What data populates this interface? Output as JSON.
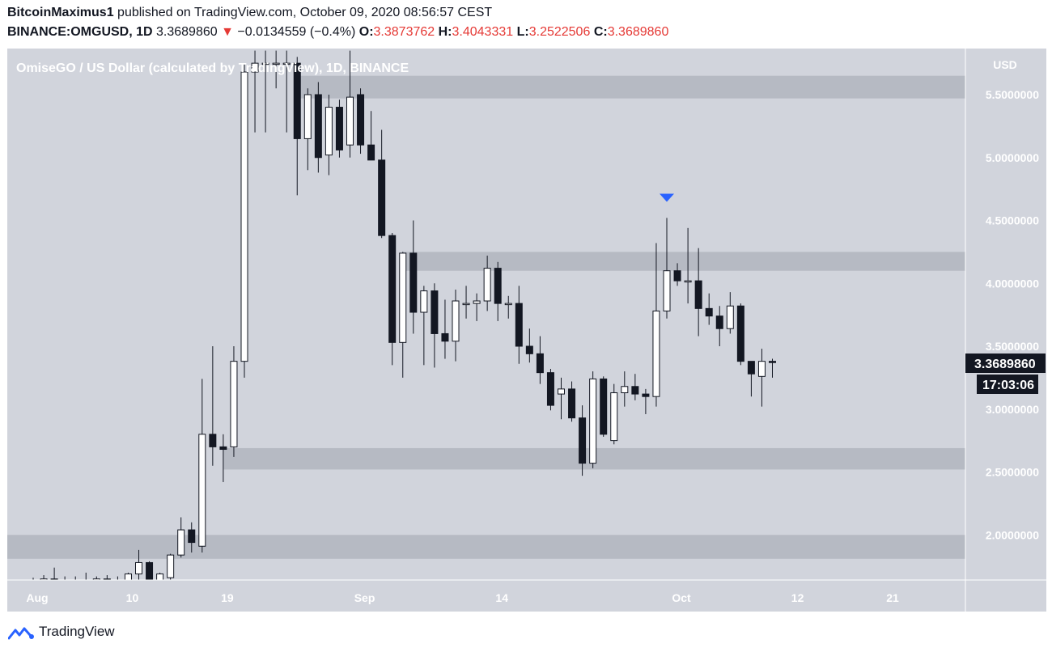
{
  "header": {
    "author": "BitcoinMaximus1",
    "published_text": "published on TradingView.com, October 09, 2020 08:56:57 CEST",
    "symbol": "BINANCE:OMGUSD, 1D",
    "last_price": "3.3689860",
    "change_arrow": "▼",
    "change": "−0.0134559 (−0.4%)",
    "open_label": "O:",
    "open": "3.3873762",
    "high_label": "H:",
    "high": "3.4043331",
    "low_label": "L:",
    "low": "3.2522506",
    "close_label": "C:",
    "close": "3.3689860"
  },
  "colors": {
    "plot_bg": "#d1d4dc",
    "zone": "#b2b5be",
    "candle_up": "#ffffff",
    "candle_down": "#131722",
    "marker": "#2962ff",
    "label_bg": "#131722",
    "down_text": "#e53935"
  },
  "chart_data": {
    "type": "candlestick",
    "title": "OmiseGO / US Dollar (calculated by TradingView), 1D, BINANCE",
    "currency_label": "USD",
    "y_ticks": [
      "5.5000000",
      "5.0000000",
      "4.5000000",
      "4.0000000",
      "3.5000000",
      "3.0000000",
      "2.5000000",
      "2.0000000"
    ],
    "y_tick_values": [
      5.5,
      5.0,
      4.5,
      4.0,
      3.5,
      3.0,
      2.5,
      2.0
    ],
    "ylim": [
      1.63,
      5.78
    ],
    "x_ticks": [
      {
        "label": "Aug",
        "day": 0
      },
      {
        "label": "10",
        "day": 9
      },
      {
        "label": "19",
        "day": 18
      },
      {
        "label": "Sep",
        "day": 31
      },
      {
        "label": "14",
        "day": 44
      },
      {
        "label": "Oct",
        "day": 61
      },
      {
        "label": "12",
        "day": 72
      },
      {
        "label": "21",
        "day": 81
      }
    ],
    "price_label": "3.3689860",
    "countdown_label": "17:03:06",
    "zones": [
      {
        "from": 5.47,
        "to": 5.65,
        "start_day": 25
      },
      {
        "from": 4.1,
        "to": 4.25,
        "start_day": 35
      },
      {
        "from": 2.52,
        "to": 2.69,
        "start_day": 18
      },
      {
        "from": 1.81,
        "to": 2.0,
        "start_day": -3
      }
    ],
    "marker": {
      "day": 60,
      "value": 4.68
    },
    "candles": [
      {
        "o": 1.64,
        "h": 1.66,
        "l": 1.6,
        "c": 1.63
      },
      {
        "o": 1.63,
        "h": 1.68,
        "l": 1.6,
        "c": 1.65
      },
      {
        "o": 1.65,
        "h": 1.74,
        "l": 1.6,
        "c": 1.64
      },
      {
        "o": 1.64,
        "h": 1.67,
        "l": 1.6,
        "c": 1.64
      },
      {
        "o": 1.64,
        "h": 1.67,
        "l": 1.6,
        "c": 1.63
      },
      {
        "o": 1.63,
        "h": 1.7,
        "l": 1.6,
        "c": 1.64
      },
      {
        "o": 1.64,
        "h": 1.67,
        "l": 1.6,
        "c": 1.65
      },
      {
        "o": 1.65,
        "h": 1.68,
        "l": 1.6,
        "c": 1.64
      },
      {
        "o": 1.64,
        "h": 1.67,
        "l": 1.6,
        "c": 1.63
      },
      {
        "o": 1.63,
        "h": 1.7,
        "l": 1.6,
        "c": 1.69
      },
      {
        "o": 1.69,
        "h": 1.88,
        "l": 1.6,
        "c": 1.78
      },
      {
        "o": 1.78,
        "h": 1.79,
        "l": 1.6,
        "c": 1.64
      },
      {
        "o": 1.64,
        "h": 1.7,
        "l": 1.6,
        "c": 1.69
      },
      {
        "o": 1.66,
        "h": 1.85,
        "l": 1.6,
        "c": 1.84
      },
      {
        "o": 1.84,
        "h": 2.14,
        "l": 1.82,
        "c": 2.04
      },
      {
        "o": 2.04,
        "h": 2.1,
        "l": 1.86,
        "c": 1.94
      },
      {
        "o": 1.91,
        "h": 3.24,
        "l": 1.86,
        "c": 2.8
      },
      {
        "o": 2.8,
        "h": 3.5,
        "l": 2.55,
        "c": 2.7
      },
      {
        "o": 2.7,
        "h": 2.8,
        "l": 2.42,
        "c": 2.68
      },
      {
        "o": 2.7,
        "h": 3.5,
        "l": 2.62,
        "c": 3.38
      },
      {
        "o": 3.38,
        "h": 5.75,
        "l": 3.25,
        "c": 5.68
      },
      {
        "o": 5.68,
        "h": 5.85,
        "l": 5.2,
        "c": 5.75
      },
      {
        "o": 5.75,
        "h": 5.85,
        "l": 5.2,
        "c": 5.75
      },
      {
        "o": 5.75,
        "h": 5.85,
        "l": 5.55,
        "c": 5.75
      },
      {
        "o": 5.75,
        "h": 5.85,
        "l": 5.2,
        "c": 5.75
      },
      {
        "o": 5.75,
        "h": 5.8,
        "l": 4.7,
        "c": 5.15
      },
      {
        "o": 5.15,
        "h": 5.55,
        "l": 4.9,
        "c": 5.5
      },
      {
        "o": 5.5,
        "h": 5.6,
        "l": 4.88,
        "c": 5.0
      },
      {
        "o": 5.02,
        "h": 5.5,
        "l": 4.86,
        "c": 5.4
      },
      {
        "o": 5.4,
        "h": 5.46,
        "l": 5.0,
        "c": 5.06
      },
      {
        "o": 5.1,
        "h": 5.85,
        "l": 5.0,
        "c": 5.48
      },
      {
        "o": 5.5,
        "h": 5.55,
        "l": 5.03,
        "c": 5.1
      },
      {
        "o": 5.1,
        "h": 5.37,
        "l": 5.0,
        "c": 4.98
      },
      {
        "o": 4.98,
        "h": 5.22,
        "l": 4.36,
        "c": 4.38
      },
      {
        "o": 4.38,
        "h": 4.4,
        "l": 3.35,
        "c": 3.53
      },
      {
        "o": 3.53,
        "h": 4.25,
        "l": 3.25,
        "c": 4.24
      },
      {
        "o": 4.24,
        "h": 4.5,
        "l": 3.6,
        "c": 3.77
      },
      {
        "o": 3.77,
        "h": 3.98,
        "l": 3.35,
        "c": 3.94
      },
      {
        "o": 3.94,
        "h": 4.0,
        "l": 3.33,
        "c": 3.6
      },
      {
        "o": 3.6,
        "h": 3.87,
        "l": 3.4,
        "c": 3.54
      },
      {
        "o": 3.54,
        "h": 3.95,
        "l": 3.38,
        "c": 3.86
      },
      {
        "o": 3.84,
        "h": 3.98,
        "l": 3.72,
        "c": 3.84
      },
      {
        "o": 3.84,
        "h": 3.92,
        "l": 3.7,
        "c": 3.86
      },
      {
        "o": 3.86,
        "h": 4.22,
        "l": 3.78,
        "c": 4.12
      },
      {
        "o": 4.12,
        "h": 4.17,
        "l": 3.7,
        "c": 3.84
      },
      {
        "o": 3.84,
        "h": 3.9,
        "l": 3.72,
        "c": 3.84
      },
      {
        "o": 3.84,
        "h": 3.98,
        "l": 3.36,
        "c": 3.5
      },
      {
        "o": 3.5,
        "h": 3.64,
        "l": 3.37,
        "c": 3.44
      },
      {
        "o": 3.44,
        "h": 3.58,
        "l": 3.2,
        "c": 3.29
      },
      {
        "o": 3.29,
        "h": 3.32,
        "l": 2.99,
        "c": 3.03
      },
      {
        "o": 3.12,
        "h": 3.25,
        "l": 2.92,
        "c": 3.16
      },
      {
        "o": 3.16,
        "h": 3.22,
        "l": 2.9,
        "c": 2.93
      },
      {
        "o": 2.93,
        "h": 3.03,
        "l": 2.47,
        "c": 2.57
      },
      {
        "o": 2.57,
        "h": 3.3,
        "l": 2.53,
        "c": 3.24
      },
      {
        "o": 3.24,
        "h": 3.26,
        "l": 2.78,
        "c": 2.8
      },
      {
        "o": 2.75,
        "h": 3.2,
        "l": 2.72,
        "c": 3.13
      },
      {
        "o": 3.13,
        "h": 3.3,
        "l": 3.02,
        "c": 3.18
      },
      {
        "o": 3.18,
        "h": 3.28,
        "l": 3.07,
        "c": 3.12
      },
      {
        "o": 3.12,
        "h": 3.16,
        "l": 2.96,
        "c": 3.1
      },
      {
        "o": 3.1,
        "h": 4.32,
        "l": 3.02,
        "c": 3.78
      },
      {
        "o": 3.78,
        "h": 4.52,
        "l": 3.72,
        "c": 4.1
      },
      {
        "o": 4.1,
        "h": 4.16,
        "l": 3.98,
        "c": 4.02
      },
      {
        "o": 4.02,
        "h": 4.44,
        "l": 3.84,
        "c": 4.02
      },
      {
        "o": 4.02,
        "h": 4.28,
        "l": 3.58,
        "c": 3.8
      },
      {
        "o": 3.8,
        "h": 3.92,
        "l": 3.67,
        "c": 3.74
      },
      {
        "o": 3.74,
        "h": 3.82,
        "l": 3.5,
        "c": 3.64
      },
      {
        "o": 3.64,
        "h": 3.93,
        "l": 3.6,
        "c": 3.82
      },
      {
        "o": 3.82,
        "h": 3.84,
        "l": 3.35,
        "c": 3.38
      },
      {
        "o": 3.38,
        "h": 3.38,
        "l": 3.1,
        "c": 3.28
      },
      {
        "o": 3.26,
        "h": 3.48,
        "l": 3.02,
        "c": 3.38
      },
      {
        "o": 3.38,
        "h": 3.4,
        "l": 3.25,
        "c": 3.37
      }
    ]
  },
  "footer": {
    "brand": "TradingView"
  }
}
